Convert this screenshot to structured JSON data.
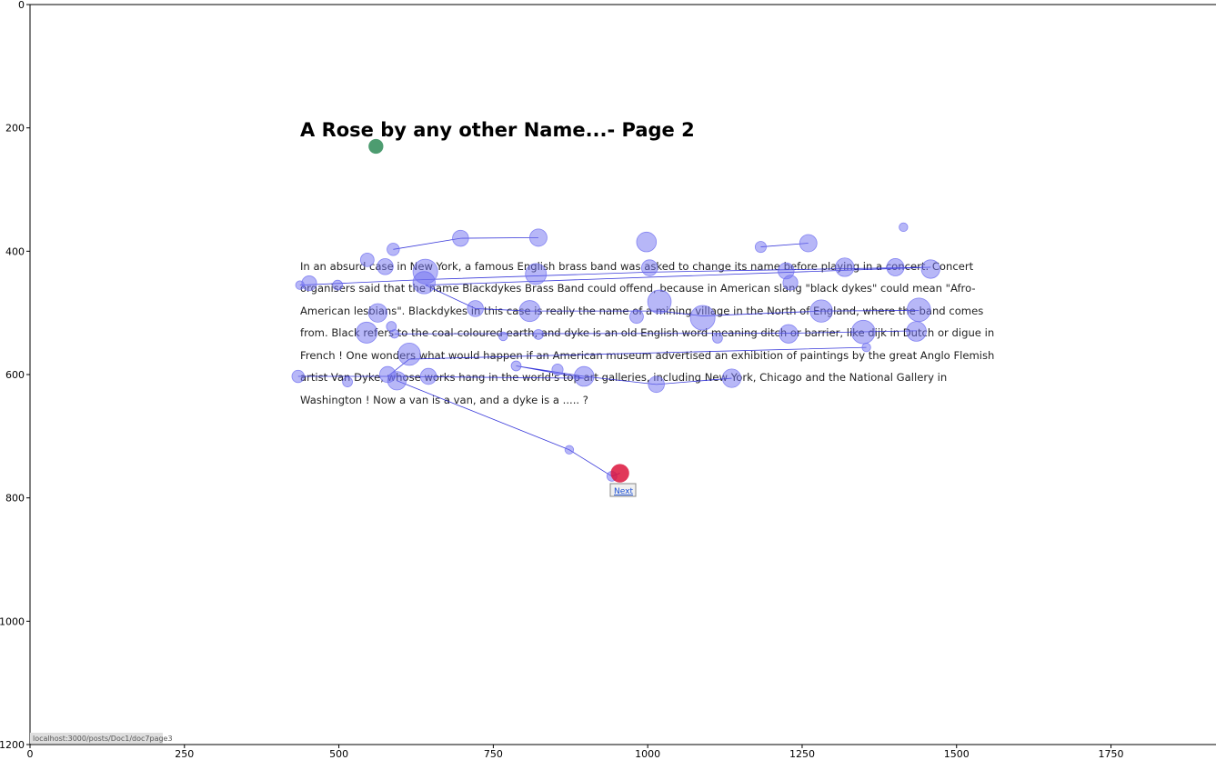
{
  "page": {
    "title": "A Rose by any other Name...- Page 2",
    "paragraph_lines": [
      "In an absurd case in New York, a famous English brass band was asked to change its name before playing in a concert. Concert",
      "organisers said that the name Blackdykes Brass Band could offend, because in American slang \"black dykes\" could mean \"Afro-",
      "American lesbians\". Blackdykes in this case is really the name of a mining village in the North of England, where the band comes",
      "from. Black refers to the coal-coloured earth, and dyke is an old English word meaning ditch or barrier, like dijk in Dutch or digue in",
      "French ! One wonders what would happen if an American museum advertised an exhibition of paintings by the great Anglo Flemish",
      "artist Van Dyke, whose works hang in the world's top art galleries, including New York, Chicago and the National Gallery in",
      "Washington ! Now a van is a van, and a dyke is a ..... ?"
    ],
    "next_label": "Next",
    "status_url": "localhost:3000/posts/Doc1/doc7page3"
  },
  "chart_data": {
    "type": "scatter",
    "xlim": [
      0,
      1920
    ],
    "ylim": [
      1200,
      0
    ],
    "x_ticks": [
      0,
      250,
      500,
      750,
      1000,
      1250,
      1500,
      1750
    ],
    "y_ticks": [
      0,
      200,
      400,
      600,
      800,
      1000,
      1200
    ],
    "colors": {
      "fixation": "#6f6ff0",
      "path": "#2323d6",
      "start": "#2e8b57",
      "end": "#dc143c"
    },
    "start_point": {
      "x": 560,
      "y": 230,
      "r": 12
    },
    "end_point": {
      "x": 955,
      "y": 760,
      "r": 15
    },
    "fixations": [
      {
        "x": 588,
        "y": 397,
        "r": 10
      },
      {
        "x": 697,
        "y": 379,
        "r": 13
      },
      {
        "x": 823,
        "y": 378,
        "r": 14
      },
      {
        "x": 998,
        "y": 385,
        "r": 16
      },
      {
        "x": 1183,
        "y": 393,
        "r": 9
      },
      {
        "x": 1260,
        "y": 387,
        "r": 14
      },
      {
        "x": 1414,
        "y": 361,
        "r": 7
      },
      {
        "x": 546,
        "y": 414,
        "r": 11
      },
      {
        "x": 575,
        "y": 425,
        "r": 13
      },
      {
        "x": 640,
        "y": 433,
        "r": 20
      },
      {
        "x": 819,
        "y": 437,
        "r": 17
      },
      {
        "x": 1003,
        "y": 427,
        "r": 13
      },
      {
        "x": 1224,
        "y": 432,
        "r": 13
      },
      {
        "x": 1319,
        "y": 426,
        "r": 15
      },
      {
        "x": 1401,
        "y": 426,
        "r": 14
      },
      {
        "x": 1458,
        "y": 429,
        "r": 15
      },
      {
        "x": 437,
        "y": 455,
        "r": 7
      },
      {
        "x": 452,
        "y": 452,
        "r": 12
      },
      {
        "x": 498,
        "y": 455,
        "r": 8
      },
      {
        "x": 638,
        "y": 451,
        "r": 18
      },
      {
        "x": 1231,
        "y": 451,
        "r": 12
      },
      {
        "x": 563,
        "y": 500,
        "r": 15
      },
      {
        "x": 721,
        "y": 493,
        "r": 13
      },
      {
        "x": 809,
        "y": 497,
        "r": 17
      },
      {
        "x": 982,
        "y": 506,
        "r": 11
      },
      {
        "x": 1019,
        "y": 482,
        "r": 19
      },
      {
        "x": 1089,
        "y": 508,
        "r": 20
      },
      {
        "x": 1281,
        "y": 497,
        "r": 18
      },
      {
        "x": 1439,
        "y": 495,
        "r": 19
      },
      {
        "x": 545,
        "y": 532,
        "r": 17
      },
      {
        "x": 585,
        "y": 522,
        "r": 8
      },
      {
        "x": 590,
        "y": 534,
        "r": 7
      },
      {
        "x": 766,
        "y": 538,
        "r": 7
      },
      {
        "x": 823,
        "y": 535,
        "r": 8
      },
      {
        "x": 1113,
        "y": 541,
        "r": 8
      },
      {
        "x": 1228,
        "y": 534,
        "r": 15
      },
      {
        "x": 1349,
        "y": 531,
        "r": 19
      },
      {
        "x": 1435,
        "y": 530,
        "r": 16
      },
      {
        "x": 614,
        "y": 567,
        "r": 18
      },
      {
        "x": 1354,
        "y": 556,
        "r": 7
      },
      {
        "x": 787,
        "y": 586,
        "r": 8
      },
      {
        "x": 854,
        "y": 592,
        "r": 9
      },
      {
        "x": 434,
        "y": 603,
        "r": 10
      },
      {
        "x": 579,
        "y": 600,
        "r": 13
      },
      {
        "x": 514,
        "y": 612,
        "r": 8
      },
      {
        "x": 594,
        "y": 610,
        "r": 15
      },
      {
        "x": 645,
        "y": 603,
        "r": 13
      },
      {
        "x": 897,
        "y": 603,
        "r": 16
      },
      {
        "x": 1014,
        "y": 616,
        "r": 13
      },
      {
        "x": 1136,
        "y": 606,
        "r": 15
      },
      {
        "x": 873,
        "y": 722,
        "r": 7
      },
      {
        "x": 942,
        "y": 765,
        "r": 8
      }
    ],
    "paths": [
      [
        [
          588,
          397
        ],
        [
          697,
          379
        ],
        [
          823,
          378
        ]
      ],
      [
        [
          1183,
          393
        ],
        [
          1260,
          387
        ]
      ],
      [
        [
          437,
          455
        ],
        [
          640,
          446
        ],
        [
          1001,
          434
        ],
        [
          1224,
          430
        ],
        [
          1458,
          426
        ],
        [
          640,
          455
        ],
        [
          721,
          493
        ],
        [
          809,
          497
        ],
        [
          1019,
          497
        ],
        [
          1089,
          505
        ],
        [
          1281,
          497
        ],
        [
          1439,
          496
        ]
      ],
      [
        [
          590,
          534
        ],
        [
          1228,
          533
        ],
        [
          1435,
          529
        ]
      ],
      [
        [
          434,
          603
        ],
        [
          579,
          603
        ],
        [
          614,
          575
        ],
        [
          1354,
          556
        ]
      ],
      [
        [
          579,
          603
        ],
        [
          897,
          606
        ],
        [
          787,
          586
        ],
        [
          897,
          603
        ],
        [
          1014,
          616
        ],
        [
          1136,
          606
        ]
      ],
      [
        [
          594,
          610
        ],
        [
          873,
          722
        ],
        [
          942,
          765
        ],
        [
          955,
          760
        ]
      ]
    ]
  }
}
